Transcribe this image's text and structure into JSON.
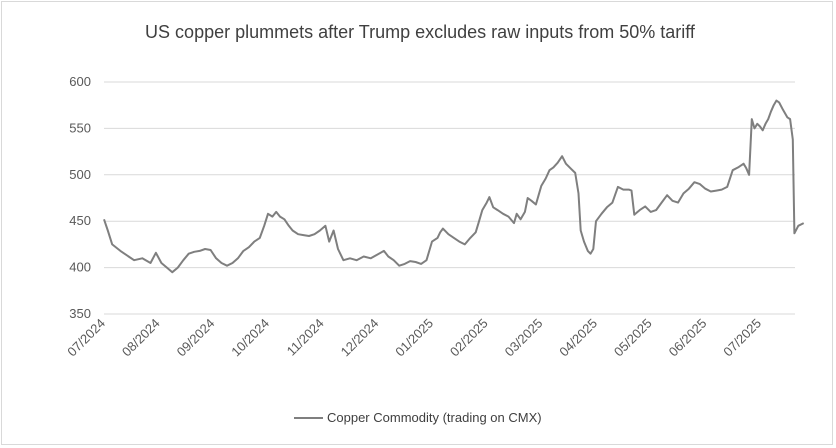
{
  "chart_data": {
    "type": "line",
    "title": "US copper plummets after Trump excludes raw inputs from 50% tariff",
    "xlabel": "",
    "ylabel": "",
    "ylim": [
      350,
      600
    ],
    "yticks": [
      "350",
      "400",
      "450",
      "500",
      "550",
      "600"
    ],
    "xticks": [
      "07/2024",
      "08/2024",
      "09/2024",
      "10/2024",
      "11/2024",
      "12/2024",
      "01/2025",
      "02/2025",
      "03/2025",
      "04/2025",
      "05/2025",
      "06/2025",
      "07/2025"
    ],
    "grid": "horizontal",
    "legend_position": "bottom",
    "series_color": "#7f7f7f",
    "series": [
      {
        "name": "Copper Commodity (trading on CMX)",
        "points": [
          [
            0.0,
            452
          ],
          [
            0.07,
            440
          ],
          [
            0.15,
            425
          ],
          [
            0.3,
            418
          ],
          [
            0.45,
            412
          ],
          [
            0.55,
            408
          ],
          [
            0.7,
            410
          ],
          [
            0.85,
            405
          ],
          [
            0.95,
            416
          ],
          [
            1.05,
            405
          ],
          [
            1.15,
            400
          ],
          [
            1.25,
            395
          ],
          [
            1.35,
            400
          ],
          [
            1.45,
            408
          ],
          [
            1.55,
            415
          ],
          [
            1.65,
            417
          ],
          [
            1.75,
            418
          ],
          [
            1.85,
            420
          ],
          [
            1.95,
            419
          ],
          [
            2.05,
            410
          ],
          [
            2.15,
            405
          ],
          [
            2.25,
            402
          ],
          [
            2.35,
            405
          ],
          [
            2.45,
            410
          ],
          [
            2.55,
            418
          ],
          [
            2.65,
            422
          ],
          [
            2.75,
            428
          ],
          [
            2.85,
            432
          ],
          [
            2.93,
            445
          ],
          [
            3.0,
            458
          ],
          [
            3.08,
            455
          ],
          [
            3.15,
            460
          ],
          [
            3.22,
            455
          ],
          [
            3.3,
            452
          ],
          [
            3.38,
            445
          ],
          [
            3.45,
            440
          ],
          [
            3.55,
            436
          ],
          [
            3.65,
            435
          ],
          [
            3.75,
            434
          ],
          [
            3.85,
            436
          ],
          [
            3.95,
            440
          ],
          [
            4.05,
            445
          ],
          [
            4.12,
            428
          ],
          [
            4.2,
            440
          ],
          [
            4.28,
            420
          ],
          [
            4.38,
            408
          ],
          [
            4.5,
            410
          ],
          [
            4.62,
            408
          ],
          [
            4.75,
            412
          ],
          [
            4.88,
            410
          ],
          [
            5.0,
            414
          ],
          [
            5.12,
            418
          ],
          [
            5.2,
            412
          ],
          [
            5.3,
            408
          ],
          [
            5.4,
            402
          ],
          [
            5.5,
            404
          ],
          [
            5.6,
            407
          ],
          [
            5.7,
            406
          ],
          [
            5.8,
            404
          ],
          [
            5.9,
            408
          ],
          [
            6.0,
            428
          ],
          [
            6.1,
            432
          ],
          [
            6.15,
            438
          ],
          [
            6.2,
            442
          ],
          [
            6.3,
            436
          ],
          [
            6.4,
            432
          ],
          [
            6.5,
            428
          ],
          [
            6.6,
            425
          ],
          [
            6.7,
            432
          ],
          [
            6.8,
            438
          ],
          [
            6.85,
            448
          ],
          [
            6.92,
            462
          ],
          [
            7.0,
            470
          ],
          [
            7.05,
            476
          ],
          [
            7.12,
            465
          ],
          [
            7.2,
            462
          ],
          [
            7.3,
            458
          ],
          [
            7.4,
            455
          ],
          [
            7.5,
            448
          ],
          [
            7.55,
            458
          ],
          [
            7.62,
            452
          ],
          [
            7.7,
            460
          ],
          [
            7.75,
            475
          ],
          [
            7.82,
            472
          ],
          [
            7.9,
            468
          ],
          [
            7.95,
            478
          ],
          [
            8.0,
            488
          ],
          [
            8.08,
            496
          ],
          [
            8.15,
            505
          ],
          [
            8.22,
            508
          ],
          [
            8.3,
            513
          ],
          [
            8.38,
            520
          ],
          [
            8.45,
            512
          ],
          [
            8.55,
            506
          ],
          [
            8.62,
            502
          ],
          [
            8.68,
            480
          ],
          [
            8.72,
            440
          ],
          [
            8.78,
            428
          ],
          [
            8.85,
            418
          ],
          [
            8.9,
            415
          ],
          [
            8.95,
            420
          ],
          [
            9.0,
            450
          ],
          [
            9.1,
            458
          ],
          [
            9.2,
            465
          ],
          [
            9.3,
            470
          ],
          [
            9.4,
            487
          ],
          [
            9.5,
            484
          ],
          [
            9.6,
            484
          ],
          [
            9.65,
            483
          ],
          [
            9.7,
            457
          ],
          [
            9.8,
            462
          ],
          [
            9.9,
            466
          ],
          [
            10.0,
            460
          ],
          [
            10.1,
            462
          ],
          [
            10.2,
            470
          ],
          [
            10.3,
            478
          ],
          [
            10.4,
            472
          ],
          [
            10.5,
            470
          ],
          [
            10.6,
            480
          ],
          [
            10.7,
            485
          ],
          [
            10.8,
            492
          ],
          [
            10.9,
            490
          ],
          [
            11.0,
            485
          ],
          [
            11.1,
            482
          ],
          [
            11.2,
            483
          ],
          [
            11.3,
            484
          ],
          [
            11.4,
            487
          ],
          [
            11.5,
            505
          ],
          [
            11.6,
            508
          ],
          [
            11.7,
            512
          ],
          [
            11.75,
            507
          ],
          [
            11.8,
            500
          ],
          [
            11.85,
            560
          ],
          [
            11.9,
            550
          ],
          [
            11.95,
            555
          ],
          [
            12.0,
            552
          ],
          [
            12.05,
            548
          ],
          [
            12.1,
            555
          ],
          [
            12.15,
            560
          ],
          [
            12.2,
            568
          ],
          [
            12.25,
            575
          ],
          [
            12.3,
            580
          ],
          [
            12.35,
            578
          ],
          [
            12.42,
            570
          ],
          [
            12.5,
            562
          ],
          [
            12.55,
            560
          ],
          [
            12.6,
            538
          ],
          [
            12.63,
            437
          ],
          [
            12.7,
            445
          ],
          [
            12.8,
            448
          ]
        ]
      }
    ]
  }
}
